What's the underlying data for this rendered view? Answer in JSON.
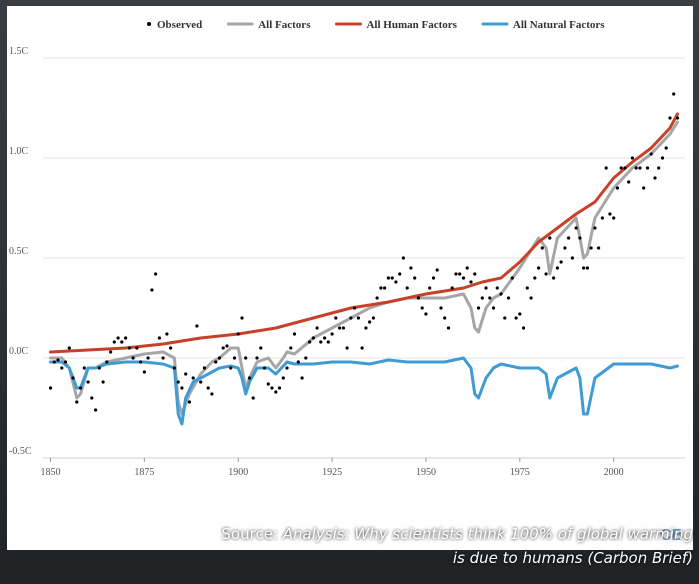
{
  "chart_data": {
    "type": "line",
    "title": "",
    "xlabel": "",
    "ylabel": "",
    "xlim": [
      1848,
      2019
    ],
    "ylim": [
      -0.5,
      1.5
    ],
    "x_ticks": [
      "1850",
      "1875",
      "1900",
      "1925",
      "1950",
      "1975",
      "2000"
    ],
    "x_tick_values": [
      1850,
      1875,
      1900,
      1925,
      1950,
      1975,
      2000
    ],
    "y_ticks": [
      "1.5C",
      "1.0C",
      "0.5C",
      "0.0C",
      "-0.5C"
    ],
    "y_tick_values": [
      1.5,
      1.0,
      0.5,
      0.0,
      -0.5
    ],
    "legend": [
      "Observed",
      "All Factors",
      "All Human Factors",
      "All Natural Factors"
    ],
    "series": [
      {
        "name": "Observed",
        "kind": "scatter",
        "color": "#000000",
        "points": [
          [
            1850,
            -0.15
          ],
          [
            1851,
            -0.02
          ],
          [
            1852,
            -0.01
          ],
          [
            1853,
            -0.05
          ],
          [
            1854,
            -0.02
          ],
          [
            1855,
            0.05
          ],
          [
            1856,
            -0.1
          ],
          [
            1857,
            -0.22
          ],
          [
            1858,
            -0.15
          ],
          [
            1859,
            -0.05
          ],
          [
            1860,
            -0.12
          ],
          [
            1861,
            -0.2
          ],
          [
            1862,
            -0.26
          ],
          [
            1863,
            -0.05
          ],
          [
            1864,
            -0.12
          ],
          [
            1865,
            -0.02
          ],
          [
            1866,
            0.03
          ],
          [
            1867,
            0.08
          ],
          [
            1868,
            0.1
          ],
          [
            1869,
            0.08
          ],
          [
            1870,
            0.1
          ],
          [
            1871,
            0.05
          ],
          [
            1872,
            0.0
          ],
          [
            1873,
            0.05
          ],
          [
            1874,
            -0.02
          ],
          [
            1875,
            -0.07
          ],
          [
            1876,
            0.0
          ],
          [
            1877,
            0.34
          ],
          [
            1878,
            0.42
          ],
          [
            1879,
            0.1
          ],
          [
            1880,
            0.0
          ],
          [
            1881,
            0.12
          ],
          [
            1882,
            0.05
          ],
          [
            1883,
            -0.05
          ],
          [
            1884,
            -0.12
          ],
          [
            1885,
            -0.15
          ],
          [
            1886,
            -0.08
          ],
          [
            1887,
            -0.22
          ],
          [
            1888,
            -0.1
          ],
          [
            1889,
            0.16
          ],
          [
            1890,
            -0.12
          ],
          [
            1891,
            -0.05
          ],
          [
            1892,
            -0.15
          ],
          [
            1893,
            -0.18
          ],
          [
            1894,
            -0.02
          ],
          [
            1895,
            0.0
          ],
          [
            1896,
            0.05
          ],
          [
            1897,
            0.06
          ],
          [
            1898,
            -0.05
          ],
          [
            1899,
            0.0
          ],
          [
            1900,
            0.12
          ],
          [
            1901,
            0.2
          ],
          [
            1902,
            0.0
          ],
          [
            1903,
            -0.1
          ],
          [
            1904,
            -0.2
          ],
          [
            1905,
            0.0
          ],
          [
            1906,
            0.05
          ],
          [
            1907,
            -0.05
          ],
          [
            1908,
            -0.13
          ],
          [
            1909,
            -0.15
          ],
          [
            1910,
            -0.17
          ],
          [
            1911,
            -0.15
          ],
          [
            1912,
            -0.1
          ],
          [
            1913,
            -0.05
          ],
          [
            1914,
            0.05
          ],
          [
            1915,
            0.12
          ],
          [
            1916,
            -0.02
          ],
          [
            1917,
            -0.1
          ],
          [
            1918,
            0.0
          ],
          [
            1919,
            0.08
          ],
          [
            1920,
            0.1
          ],
          [
            1921,
            0.15
          ],
          [
            1922,
            0.08
          ],
          [
            1923,
            0.1
          ],
          [
            1924,
            0.08
          ],
          [
            1925,
            0.12
          ],
          [
            1926,
            0.2
          ],
          [
            1927,
            0.15
          ],
          [
            1928,
            0.15
          ],
          [
            1929,
            0.05
          ],
          [
            1930,
            0.2
          ],
          [
            1931,
            0.25
          ],
          [
            1932,
            0.2
          ],
          [
            1933,
            0.05
          ],
          [
            1934,
            0.15
          ],
          [
            1935,
            0.18
          ],
          [
            1936,
            0.2
          ],
          [
            1937,
            0.3
          ],
          [
            1938,
            0.35
          ],
          [
            1939,
            0.35
          ],
          [
            1940,
            0.4
          ],
          [
            1941,
            0.4
          ],
          [
            1942,
            0.38
          ],
          [
            1943,
            0.42
          ],
          [
            1944,
            0.5
          ],
          [
            1945,
            0.35
          ],
          [
            1946,
            0.45
          ],
          [
            1947,
            0.4
          ],
          [
            1948,
            0.3
          ],
          [
            1949,
            0.25
          ],
          [
            1950,
            0.22
          ],
          [
            1951,
            0.35
          ],
          [
            1952,
            0.4
          ],
          [
            1953,
            0.44
          ],
          [
            1954,
            0.25
          ],
          [
            1955,
            0.2
          ],
          [
            1956,
            0.15
          ],
          [
            1957,
            0.35
          ],
          [
            1958,
            0.42
          ],
          [
            1959,
            0.42
          ],
          [
            1960,
            0.4
          ],
          [
            1961,
            0.45
          ],
          [
            1962,
            0.38
          ],
          [
            1963,
            0.42
          ],
          [
            1964,
            0.25
          ],
          [
            1965,
            0.3
          ],
          [
            1966,
            0.35
          ],
          [
            1967,
            0.3
          ],
          [
            1968,
            0.25
          ],
          [
            1969,
            0.35
          ],
          [
            1970,
            0.32
          ],
          [
            1971,
            0.2
          ],
          [
            1972,
            0.3
          ],
          [
            1973,
            0.4
          ],
          [
            1974,
            0.2
          ],
          [
            1975,
            0.22
          ],
          [
            1976,
            0.15
          ],
          [
            1977,
            0.35
          ],
          [
            1978,
            0.3
          ],
          [
            1979,
            0.4
          ],
          [
            1980,
            0.45
          ],
          [
            1981,
            0.55
          ],
          [
            1982,
            0.42
          ],
          [
            1983,
            0.6
          ],
          [
            1984,
            0.4
          ],
          [
            1985,
            0.45
          ],
          [
            1986,
            0.48
          ],
          [
            1987,
            0.55
          ],
          [
            1988,
            0.6
          ],
          [
            1989,
            0.5
          ],
          [
            1990,
            0.65
          ],
          [
            1991,
            0.6
          ],
          [
            1992,
            0.45
          ],
          [
            1993,
            0.45
          ],
          [
            1994,
            0.55
          ],
          [
            1995,
            0.65
          ],
          [
            1996,
            0.55
          ],
          [
            1997,
            0.7
          ],
          [
            1998,
            0.95
          ],
          [
            1999,
            0.72
          ],
          [
            2000,
            0.7
          ],
          [
            2001,
            0.85
          ],
          [
            2002,
            0.95
          ],
          [
            2003,
            0.95
          ],
          [
            2004,
            0.88
          ],
          [
            2005,
            1.0
          ],
          [
            2006,
            0.95
          ],
          [
            2007,
            0.95
          ],
          [
            2008,
            0.85
          ],
          [
            2009,
            0.95
          ],
          [
            2010,
            1.02
          ],
          [
            2011,
            0.9
          ],
          [
            2012,
            0.95
          ],
          [
            2013,
            1.0
          ],
          [
            2014,
            1.05
          ],
          [
            2015,
            1.2
          ],
          [
            2016,
            1.32
          ],
          [
            2017,
            1.2
          ]
        ]
      },
      {
        "name": "All Factors",
        "kind": "line",
        "color": "#a6a6a6",
        "x": [
          1850,
          1853,
          1855,
          1857,
          1858,
          1860,
          1862,
          1865,
          1870,
          1875,
          1880,
          1883,
          1884,
          1885,
          1887,
          1890,
          1893,
          1895,
          1898,
          1900,
          1901,
          1902,
          1903,
          1905,
          1908,
          1910,
          1912,
          1913,
          1915,
          1920,
          1925,
          1930,
          1935,
          1940,
          1945,
          1950,
          1955,
          1960,
          1962,
          1963,
          1964,
          1966,
          1968,
          1970,
          1975,
          1980,
          1982,
          1983,
          1985,
          1990,
          1991,
          1992,
          1993,
          1995,
          2000,
          2005,
          2010,
          2015,
          2017
        ],
        "values": [
          0.0,
          0.0,
          -0.05,
          -0.2,
          -0.18,
          -0.05,
          -0.05,
          -0.02,
          0.0,
          0.02,
          0.03,
          0.0,
          -0.22,
          -0.28,
          -0.18,
          -0.08,
          -0.02,
          0.0,
          0.05,
          0.05,
          -0.05,
          -0.15,
          -0.1,
          -0.02,
          0.0,
          -0.05,
          0.0,
          0.03,
          0.02,
          0.1,
          0.15,
          0.2,
          0.25,
          0.28,
          0.3,
          0.3,
          0.3,
          0.32,
          0.25,
          0.15,
          0.13,
          0.25,
          0.3,
          0.32,
          0.45,
          0.6,
          0.55,
          0.42,
          0.6,
          0.7,
          0.6,
          0.5,
          0.52,
          0.7,
          0.85,
          0.95,
          1.02,
          1.12,
          1.18
        ]
      },
      {
        "name": "All Human Factors",
        "kind": "line",
        "color": "#c8402a",
        "x": [
          1850,
          1860,
          1870,
          1880,
          1890,
          1900,
          1910,
          1920,
          1930,
          1940,
          1950,
          1960,
          1965,
          1970,
          1975,
          1980,
          1985,
          1990,
          1995,
          2000,
          2005,
          2010,
          2015,
          2017
        ],
        "values": [
          0.03,
          0.04,
          0.05,
          0.07,
          0.1,
          0.12,
          0.15,
          0.2,
          0.25,
          0.28,
          0.32,
          0.35,
          0.38,
          0.4,
          0.48,
          0.58,
          0.65,
          0.72,
          0.78,
          0.9,
          0.98,
          1.05,
          1.15,
          1.22
        ]
      },
      {
        "name": "All Natural Factors",
        "kind": "line",
        "color": "#3f9bd4",
        "x": [
          1850,
          1853,
          1855,
          1857,
          1858,
          1860,
          1862,
          1865,
          1870,
          1875,
          1880,
          1883,
          1884,
          1885,
          1886,
          1888,
          1890,
          1895,
          1898,
          1900,
          1901,
          1902,
          1903,
          1905,
          1908,
          1910,
          1912,
          1913,
          1915,
          1920,
          1925,
          1930,
          1935,
          1940,
          1945,
          1950,
          1955,
          1960,
          1962,
          1963,
          1964,
          1966,
          1968,
          1970,
          1975,
          1980,
          1982,
          1983,
          1985,
          1990,
          1991,
          1992,
          1993,
          1995,
          2000,
          2005,
          2010,
          2015,
          2017
        ],
        "values": [
          -0.02,
          -0.02,
          -0.05,
          -0.15,
          -0.15,
          -0.05,
          -0.05,
          -0.03,
          -0.02,
          -0.02,
          -0.03,
          -0.05,
          -0.28,
          -0.33,
          -0.2,
          -0.12,
          -0.1,
          -0.05,
          -0.04,
          -0.05,
          -0.1,
          -0.18,
          -0.12,
          -0.05,
          -0.05,
          -0.08,
          -0.04,
          -0.02,
          -0.03,
          -0.03,
          -0.02,
          -0.02,
          -0.03,
          -0.01,
          -0.02,
          -0.02,
          -0.02,
          0.0,
          -0.05,
          -0.18,
          -0.2,
          -0.1,
          -0.05,
          -0.03,
          -0.05,
          -0.05,
          -0.08,
          -0.2,
          -0.1,
          -0.05,
          -0.1,
          -0.28,
          -0.28,
          -0.1,
          -0.03,
          -0.03,
          -0.03,
          -0.05,
          -0.04
        ]
      }
    ]
  },
  "footer": {
    "logo": "CB",
    "caption_line1_prefix": "Source: ",
    "caption_line1_title": "Analysis: Why scientists think 100% of global warming",
    "caption_line2": "is due to humans (Carbon Brief)"
  }
}
